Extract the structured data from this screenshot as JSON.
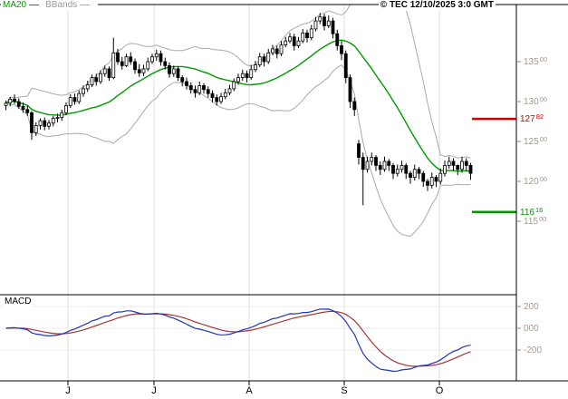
{
  "legend": {
    "ma20": "MA20",
    "bbands": "BBands"
  },
  "header": {
    "copyright": "© TEC 12/10/2025 3:0 GMT"
  },
  "macd": {
    "title": "MACD"
  },
  "chart_data": {
    "type": "candlestick",
    "title": "",
    "price_axis": {
      "ylim": [
        10636,
        14216
      ],
      "ticks": [
        {
          "main": "135",
          "sup": "00",
          "value": 13500
        },
        {
          "main": "130",
          "sup": "00",
          "value": 13000
        },
        {
          "main": "125",
          "sup": "00",
          "value": 12500
        },
        {
          "main": "120",
          "sup": "00",
          "value": 12000
        },
        {
          "main": "115",
          "sup": "00",
          "value": 11500
        }
      ]
    },
    "x_axis": {
      "ticks": [
        {
          "label": "J",
          "x": 75
        },
        {
          "label": "J",
          "x": 170
        },
        {
          "label": "A",
          "x": 275
        },
        {
          "label": "S",
          "x": 380
        },
        {
          "label": "O",
          "x": 485
        }
      ]
    },
    "macd_axis": {
      "ylim": [
        -483,
        308
      ],
      "ticks": [
        {
          "label": "200",
          "value": 200
        },
        {
          "label": "000",
          "value": 0
        },
        {
          "label": "-200",
          "value": -200
        }
      ]
    },
    "levels": [
      {
        "main": "127",
        "sup": "82",
        "value": 12782,
        "color": "#cc0000"
      },
      {
        "main": "116",
        "sup": "16",
        "value": 11616,
        "color": "#009900"
      }
    ],
    "indicators": {
      "ma_period": 20,
      "bb_period": 20,
      "bb_stddev": 2,
      "macd_fast": 12,
      "macd_slow": 26,
      "macd_signal": 9
    },
    "colors": {
      "ma20": "#009900",
      "bbands": "#aaaaaa",
      "candle": "#000000",
      "macd_line": "#2233bb",
      "macd_signal": "#aa3333",
      "grid": "#dddddd",
      "macd_grid": "#ececec",
      "axis_text": "#a39b8f",
      "month_text": "#000000",
      "border": "#000000",
      "tick": "#888888"
    },
    "candles": [
      [
        12950,
        13010,
        12890,
        12980
      ],
      [
        12980,
        13060,
        12940,
        13030
      ],
      [
        13030,
        13090,
        12970,
        13000
      ],
      [
        13000,
        13040,
        12910,
        12940
      ],
      [
        12940,
        12990,
        12860,
        12900
      ],
      [
        12900,
        12950,
        12820,
        12860
      ],
      [
        12860,
        12880,
        12520,
        12610
      ],
      [
        12610,
        12740,
        12570,
        12700
      ],
      [
        12700,
        12790,
        12650,
        12760
      ],
      [
        12760,
        12800,
        12640,
        12690
      ],
      [
        12690,
        12770,
        12650,
        12730
      ],
      [
        12730,
        12820,
        12690,
        12790
      ],
      [
        12790,
        12850,
        12740,
        12800
      ],
      [
        12800,
        12900,
        12760,
        12860
      ],
      [
        12860,
        12990,
        12830,
        12950
      ],
      [
        12950,
        13090,
        12920,
        13050
      ],
      [
        13050,
        13100,
        12960,
        13000
      ],
      [
        13000,
        13140,
        12970,
        13100
      ],
      [
        13100,
        13200,
        13060,
        13160
      ],
      [
        13160,
        13260,
        13120,
        13210
      ],
      [
        13210,
        13340,
        13180,
        13300
      ],
      [
        13300,
        13350,
        13200,
        13250
      ],
      [
        13250,
        13390,
        13220,
        13350
      ],
      [
        13350,
        13450,
        13310,
        13410
      ],
      [
        13410,
        13440,
        13260,
        13300
      ],
      [
        13300,
        13800,
        13280,
        13610
      ],
      [
        13610,
        13660,
        13460,
        13500
      ],
      [
        13500,
        13560,
        13400,
        13450
      ],
      [
        13450,
        13600,
        13430,
        13560
      ],
      [
        13560,
        13620,
        13460,
        13500
      ],
      [
        13500,
        13540,
        13350,
        13400
      ],
      [
        13400,
        13470,
        13310,
        13360
      ],
      [
        13360,
        13460,
        13320,
        13410
      ],
      [
        13410,
        13550,
        13380,
        13500
      ],
      [
        13500,
        13600,
        13470,
        13560
      ],
      [
        13560,
        13650,
        13510,
        13600
      ],
      [
        13600,
        13640,
        13450,
        13500
      ],
      [
        13500,
        13550,
        13400,
        13450
      ],
      [
        13450,
        13490,
        13300,
        13350
      ],
      [
        13350,
        13450,
        13310,
        13410
      ],
      [
        13410,
        13440,
        13260,
        13300
      ],
      [
        13300,
        13330,
        13190,
        13250
      ],
      [
        13250,
        13300,
        13150,
        13200
      ],
      [
        13200,
        13240,
        13100,
        13150
      ],
      [
        13150,
        13200,
        13050,
        13110
      ],
      [
        13110,
        13250,
        13080,
        13200
      ],
      [
        13200,
        13230,
        13100,
        13150
      ],
      [
        13150,
        13190,
        13050,
        13100
      ],
      [
        13100,
        13140,
        12990,
        13050
      ],
      [
        13050,
        13090,
        12950,
        13000
      ],
      [
        13000,
        13110,
        12970,
        13060
      ],
      [
        13060,
        13160,
        13030,
        13110
      ],
      [
        13110,
        13210,
        13080,
        13160
      ],
      [
        13160,
        13290,
        13130,
        13250
      ],
      [
        13250,
        13350,
        13210,
        13300
      ],
      [
        13300,
        13400,
        13260,
        13350
      ],
      [
        13350,
        13390,
        13240,
        13300
      ],
      [
        13300,
        13460,
        13270,
        13400
      ],
      [
        13400,
        13510,
        13370,
        13460
      ],
      [
        13460,
        13610,
        13430,
        13560
      ],
      [
        13560,
        13600,
        13440,
        13500
      ],
      [
        13500,
        13660,
        13470,
        13610
      ],
      [
        13610,
        13710,
        13580,
        13660
      ],
      [
        13660,
        13700,
        13540,
        13600
      ],
      [
        13600,
        13760,
        13570,
        13710
      ],
      [
        13710,
        13810,
        13680,
        13760
      ],
      [
        13760,
        13860,
        13730,
        13810
      ],
      [
        13810,
        13850,
        13640,
        13700
      ],
      [
        13700,
        13810,
        13670,
        13760
      ],
      [
        13760,
        13910,
        13730,
        13860
      ],
      [
        13860,
        13900,
        13740,
        13800
      ],
      [
        13800,
        13960,
        13770,
        13910
      ],
      [
        13910,
        14060,
        13880,
        14010
      ],
      [
        14010,
        14110,
        13970,
        14060
      ],
      [
        14060,
        14100,
        13890,
        13950
      ],
      [
        13950,
        14080,
        13920,
        14010
      ],
      [
        14010,
        14050,
        13790,
        13850
      ],
      [
        13850,
        13900,
        13640,
        13700
      ],
      [
        13700,
        13760,
        13520,
        13600
      ],
      [
        13600,
        13640,
        13230,
        13300
      ],
      [
        13300,
        13340,
        12920,
        13000
      ],
      [
        13000,
        13050,
        12820,
        12900
      ],
      [
        12470,
        12520,
        12210,
        12300
      ],
      [
        12300,
        12360,
        11700,
        12150
      ],
      [
        12150,
        12310,
        12110,
        12250
      ],
      [
        12250,
        12360,
        12200,
        12300
      ],
      [
        12300,
        12330,
        12130,
        12200
      ],
      [
        12200,
        12250,
        12080,
        12150
      ],
      [
        12150,
        12310,
        12120,
        12250
      ],
      [
        12250,
        12280,
        12130,
        12200
      ],
      [
        12200,
        12230,
        12030,
        12100
      ],
      [
        12100,
        12210,
        12060,
        12150
      ],
      [
        12150,
        12260,
        12110,
        12200
      ],
      [
        12200,
        12230,
        12030,
        12100
      ],
      [
        12100,
        12130,
        11970,
        12050
      ],
      [
        12050,
        12210,
        12010,
        12150
      ],
      [
        12150,
        12180,
        12030,
        12100
      ],
      [
        12100,
        12130,
        11930,
        12000
      ],
      [
        12000,
        12030,
        11880,
        11950
      ],
      [
        11950,
        12110,
        11910,
        12050
      ],
      [
        12050,
        12080,
        11930,
        12000
      ],
      [
        12000,
        12160,
        11960,
        12100
      ],
      [
        12100,
        12260,
        12060,
        12200
      ],
      [
        12200,
        12310,
        12160,
        12250
      ],
      [
        12250,
        12290,
        12130,
        12200
      ],
      [
        12200,
        12210,
        12080,
        12150
      ],
      [
        12150,
        12310,
        12110,
        12250
      ],
      [
        12250,
        12290,
        12130,
        12200
      ],
      [
        12200,
        12230,
        12020,
        12100
      ]
    ]
  }
}
